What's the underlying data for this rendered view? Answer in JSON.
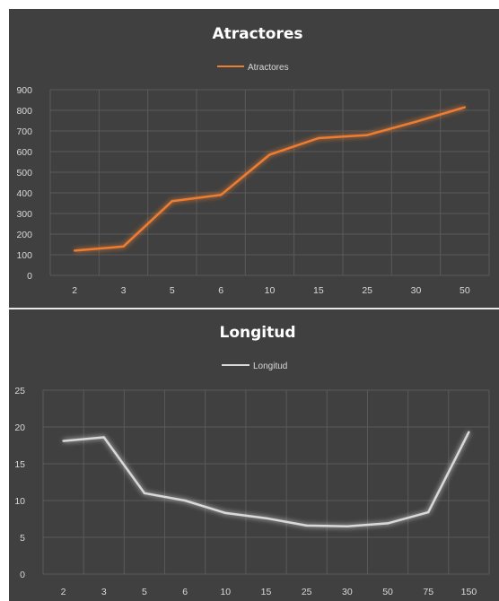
{
  "chart_data": [
    {
      "type": "line",
      "title": "Atractores",
      "xlabel": "",
      "ylabel": "",
      "categories": [
        "2",
        "3",
        "5",
        "6",
        "10",
        "15",
        "25",
        "30",
        "50"
      ],
      "series": [
        {
          "name": "Atractores",
          "values": [
            120,
            140,
            360,
            390,
            585,
            665,
            680,
            745,
            815
          ]
        }
      ],
      "yticks": [
        "0",
        "100",
        "200",
        "300",
        "400",
        "500",
        "600",
        "700",
        "800",
        "900"
      ],
      "ylim": [
        0,
        900
      ],
      "grid": true,
      "legend": "top-center",
      "color": "#ed7d31"
    },
    {
      "type": "line",
      "title": "Longitud",
      "xlabel": "",
      "ylabel": "",
      "categories": [
        "2",
        "3",
        "5",
        "6",
        "10",
        "15",
        "25",
        "30",
        "50",
        "75",
        "150"
      ],
      "series": [
        {
          "name": "Longitud",
          "values": [
            18.1,
            18.6,
            11.0,
            10.0,
            8.3,
            7.6,
            6.6,
            6.5,
            6.9,
            8.4,
            19.3
          ]
        }
      ],
      "yticks": [
        "0",
        "5",
        "10",
        "15",
        "20",
        "25"
      ],
      "ylim": [
        0,
        25
      ],
      "grid": true,
      "legend": "top-center",
      "color": "#d9d9d9"
    }
  ]
}
